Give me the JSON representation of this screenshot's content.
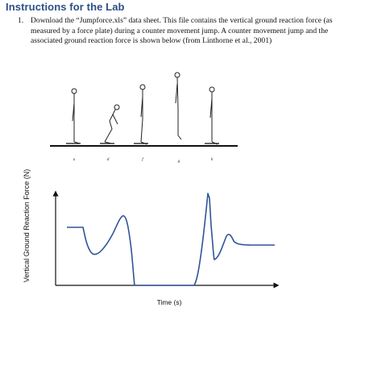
{
  "section": {
    "heading": "Instructions for the Lab"
  },
  "instruction": {
    "number": "1.",
    "text": "Download the “Jumpforce.xls” data sheet. This file contains the vertical ground reaction force (as measured by a force plate) during a counter movement jump. A counter movement jump and the associated ground reaction force is shown below (from Linthorne et al., 2001)"
  },
  "figure": {
    "phase_labels": [
      "a",
      "d",
      "f",
      "g",
      "h"
    ],
    "ylabel": "Vertical Ground Reaction Force (N)",
    "xlabel": "Time (s)",
    "line_color": "#2f5597"
  }
}
